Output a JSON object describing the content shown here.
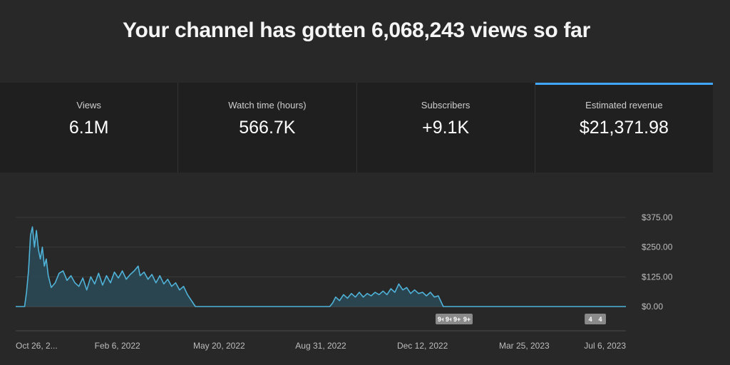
{
  "headline": "Your channel has gotten 6,068,243 views so far",
  "metrics": [
    {
      "label": "Views",
      "value": "6.1M"
    },
    {
      "label": "Watch time (hours)",
      "value": "566.7K"
    },
    {
      "label": "Subscribers",
      "value": "+9.1K"
    },
    {
      "label": "Estimated revenue",
      "value": "$21,371.98"
    }
  ],
  "selected_metric": "Estimated revenue",
  "colors": {
    "accent": "#3ea6ff",
    "line": "#4fb3d9",
    "fill": "#2b4a57"
  },
  "chart_data": {
    "type": "area",
    "series_label": "Estimated revenue",
    "x_start": "Oct 26, 2021",
    "x_end": "Jul 6, 2023",
    "x_tick_labels": [
      "Oct 26, 2...",
      "Feb 6, 2022",
      "May 20, 2022",
      "Aug 31, 2022",
      "Dec 12, 2022",
      "Mar 25, 2023",
      "Jul 6, 2023"
    ],
    "y_tick_labels": [
      "$375.00",
      "$250.00",
      "$125.00",
      "$0.00"
    ],
    "ylim": [
      0,
      375
    ],
    "grid": true,
    "points": [
      [
        "Oct 26, 2021",
        0
      ],
      [
        "Nov 4, 2021",
        0
      ],
      [
        "Nov 6, 2021",
        60
      ],
      [
        "Nov 8, 2021",
        150
      ],
      [
        "Nov 10, 2021",
        300
      ],
      [
        "Nov 12, 2021",
        335
      ],
      [
        "Nov 14, 2021",
        250
      ],
      [
        "Nov 16, 2021",
        320
      ],
      [
        "Nov 18, 2021",
        240
      ],
      [
        "Nov 20, 2021",
        200
      ],
      [
        "Nov 22, 2021",
        250
      ],
      [
        "Nov 24, 2021",
        170
      ],
      [
        "Nov 26, 2021",
        200
      ],
      [
        "Nov 28, 2021",
        130
      ],
      [
        "Dec 1, 2021",
        80
      ],
      [
        "Dec 5, 2021",
        100
      ],
      [
        "Dec 9, 2021",
        140
      ],
      [
        "Dec 13, 2021",
        150
      ],
      [
        "Dec 17, 2021",
        110
      ],
      [
        "Dec 21, 2021",
        130
      ],
      [
        "Dec 25, 2021",
        100
      ],
      [
        "Dec 29, 2021",
        85
      ],
      [
        "Jan 2, 2022",
        120
      ],
      [
        "Jan 6, 2022",
        70
      ],
      [
        "Jan 10, 2022",
        125
      ],
      [
        "Jan 14, 2022",
        95
      ],
      [
        "Jan 18, 2022",
        140
      ],
      [
        "Jan 22, 2022",
        90
      ],
      [
        "Jan 26, 2022",
        130
      ],
      [
        "Jan 30, 2022",
        100
      ],
      [
        "Feb 3, 2022",
        145
      ],
      [
        "Feb 7, 2022",
        120
      ],
      [
        "Feb 11, 2022",
        150
      ],
      [
        "Feb 15, 2022",
        115
      ],
      [
        "Feb 19, 2022",
        135
      ],
      [
        "Feb 23, 2022",
        150
      ],
      [
        "Feb 27, 2022",
        170
      ],
      [
        "Mar 1, 2022",
        130
      ],
      [
        "Mar 5, 2022",
        145
      ],
      [
        "Mar 9, 2022",
        115
      ],
      [
        "Mar 13, 2022",
        135
      ],
      [
        "Mar 17, 2022",
        100
      ],
      [
        "Mar 21, 2022",
        130
      ],
      [
        "Mar 25, 2022",
        95
      ],
      [
        "Mar 29, 2022",
        115
      ],
      [
        "Apr 2, 2022",
        85
      ],
      [
        "Apr 6, 2022",
        100
      ],
      [
        "Apr 10, 2022",
        70
      ],
      [
        "Apr 14, 2022",
        85
      ],
      [
        "Apr 18, 2022",
        50
      ],
      [
        "Apr 22, 2022",
        25
      ],
      [
        "Apr 26, 2022",
        0
      ],
      [
        "Sep 9, 2022",
        0
      ],
      [
        "Sep 12, 2022",
        15
      ],
      [
        "Sep 15, 2022",
        40
      ],
      [
        "Sep 19, 2022",
        25
      ],
      [
        "Sep 23, 2022",
        50
      ],
      [
        "Sep 27, 2022",
        35
      ],
      [
        "Oct 1, 2022",
        55
      ],
      [
        "Oct 5, 2022",
        40
      ],
      [
        "Oct 9, 2022",
        60
      ],
      [
        "Oct 13, 2022",
        40
      ],
      [
        "Oct 17, 2022",
        55
      ],
      [
        "Oct 21, 2022",
        45
      ],
      [
        "Oct 25, 2022",
        60
      ],
      [
        "Oct 29, 2022",
        50
      ],
      [
        "Nov 2, 2022",
        65
      ],
      [
        "Nov 6, 2022",
        50
      ],
      [
        "Nov 10, 2022",
        75
      ],
      [
        "Nov 14, 2022",
        60
      ],
      [
        "Nov 18, 2022",
        95
      ],
      [
        "Nov 22, 2022",
        70
      ],
      [
        "Nov 26, 2022",
        80
      ],
      [
        "Nov 30, 2022",
        55
      ],
      [
        "Dec 4, 2022",
        70
      ],
      [
        "Dec 8, 2022",
        55
      ],
      [
        "Dec 12, 2022",
        60
      ],
      [
        "Dec 16, 2022",
        45
      ],
      [
        "Dec 20, 2022",
        60
      ],
      [
        "Dec 24, 2022",
        40
      ],
      [
        "Dec 28, 2022",
        45
      ],
      [
        "Jan 2, 2023",
        0
      ],
      [
        "Jul 6, 2023",
        0
      ]
    ],
    "annotations": [
      {
        "date": "Dec 31, 2022",
        "label": "9+"
      },
      {
        "date": "Jan 8, 2023",
        "label": "9+"
      },
      {
        "date": "Jan 16, 2023",
        "label": "9+"
      },
      {
        "date": "Jan 26, 2023",
        "label": "9+"
      },
      {
        "date": "May 31, 2023",
        "label": "4"
      },
      {
        "date": "Jun 10, 2023",
        "label": "4"
      }
    ]
  }
}
